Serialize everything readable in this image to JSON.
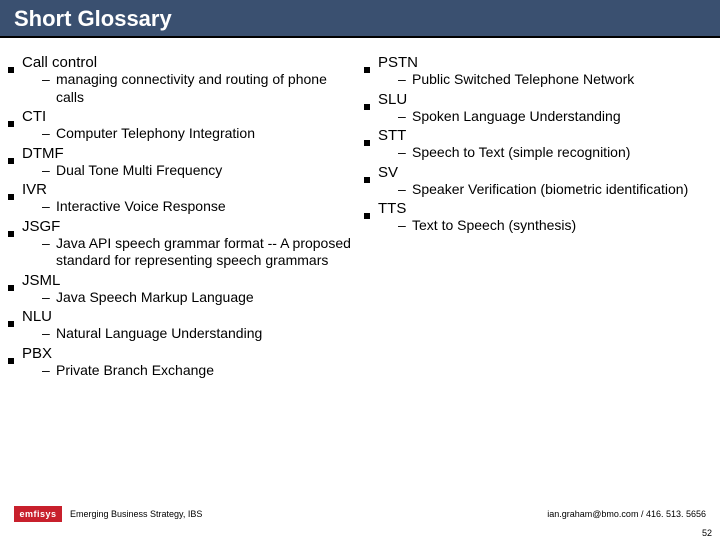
{
  "title": "Short Glossary",
  "colors": {
    "title_bg": "#3a5070",
    "title_fg": "#ffffff",
    "logo_bg": "#c8202c",
    "body_bg": "#ffffff",
    "text": "#000000"
  },
  "left_terms": [
    {
      "term": "Call control",
      "defs": [
        "managing connectivity and routing of phone calls"
      ]
    },
    {
      "term": "CTI",
      "defs": [
        "Computer Telephony Integration"
      ]
    },
    {
      "term": "DTMF",
      "defs": [
        "Dual Tone Multi Frequency"
      ]
    },
    {
      "term": "IVR",
      "defs": [
        "Interactive Voice Response"
      ]
    },
    {
      "term": "JSGF",
      "defs": [
        "Java API speech grammar format -- A proposed standard for representing speech grammars"
      ]
    },
    {
      "term": "JSML",
      "defs": [
        "Java Speech Markup Language"
      ]
    },
    {
      "term": "NLU",
      "defs": [
        "Natural Language Understanding"
      ]
    },
    {
      "term": "PBX",
      "defs": [
        "Private Branch Exchange"
      ]
    }
  ],
  "right_terms": [
    {
      "term": "PSTN",
      "defs": [
        "Public Switched Telephone Network"
      ]
    },
    {
      "term": "SLU",
      "defs": [
        "Spoken Language Understanding"
      ]
    },
    {
      "term": "STT",
      "defs": [
        "Speech to Text (simple recognition)"
      ]
    },
    {
      "term": "SV",
      "defs": [
        "Speaker Verification (biometric identification)"
      ]
    },
    {
      "term": "TTS",
      "defs": [
        "Text to Speech (synthesis)"
      ]
    }
  ],
  "footer": {
    "logo_text": "emfisys",
    "left_text": "Emerging Business Strategy, IBS",
    "right_text": "ian.graham@bmo.com / 416. 513. 5656"
  },
  "page_number": "52"
}
